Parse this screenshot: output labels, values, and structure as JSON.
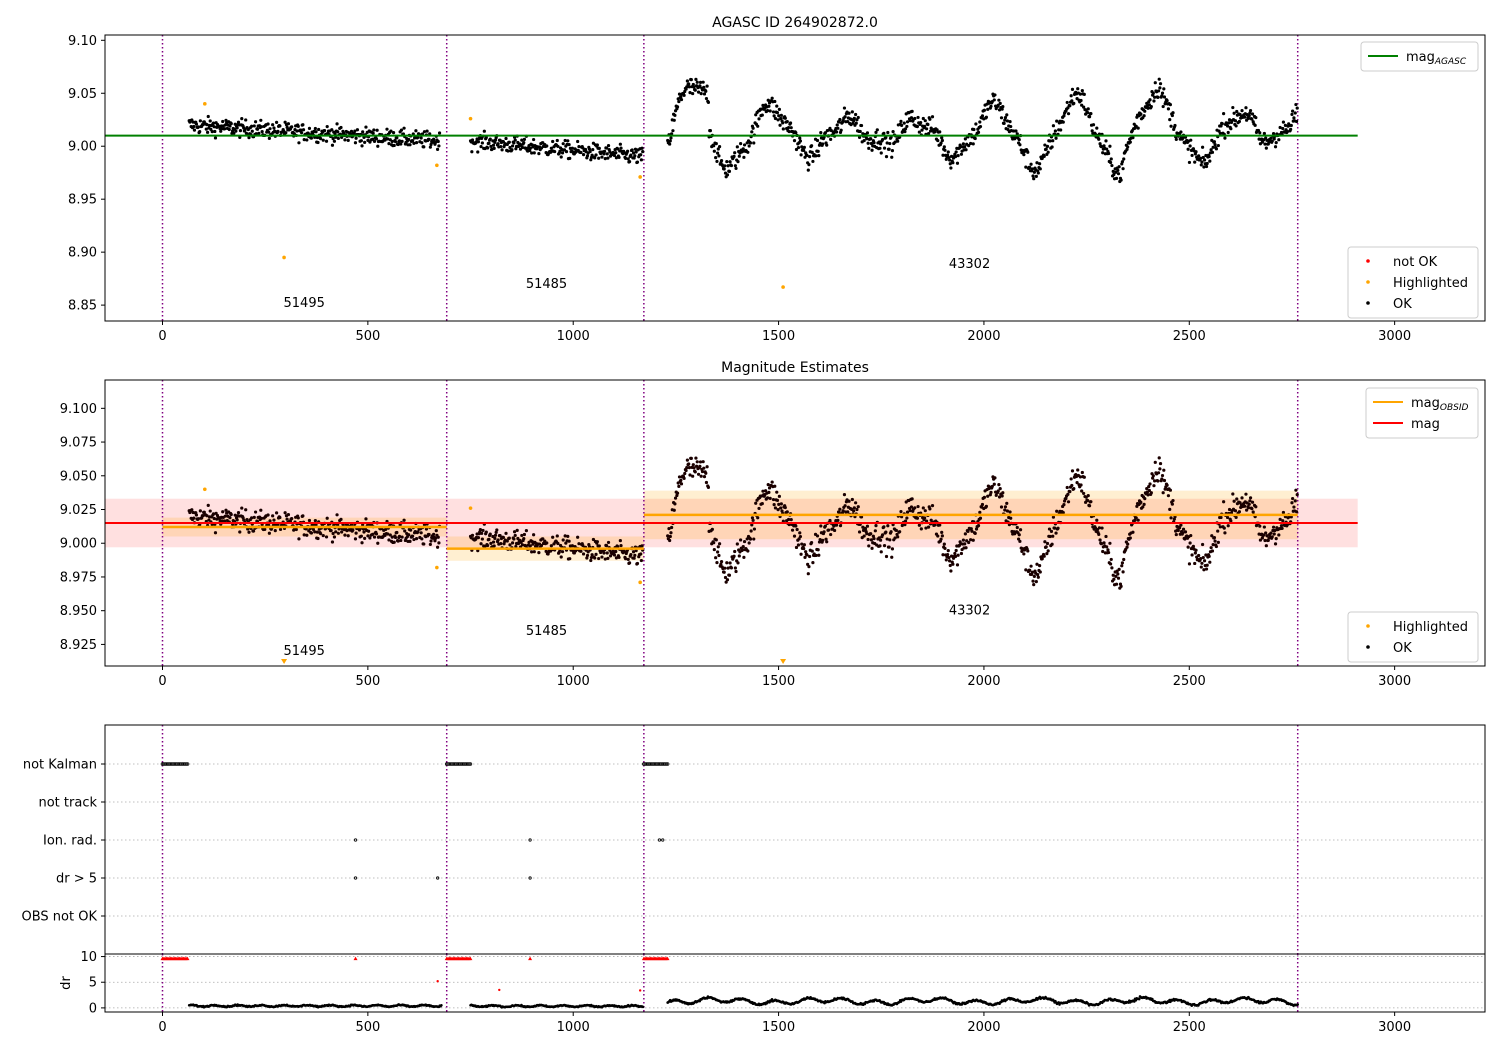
{
  "chart_data": [
    {
      "type": "scatter",
      "title": "AGASC ID 264902872.0",
      "xlabel": "",
      "ylabel": "",
      "xlim": [
        -140,
        3220
      ],
      "ylim": [
        8.835,
        9.105
      ],
      "x_ticks": [
        0,
        500,
        1000,
        1500,
        2000,
        2500,
        3000
      ],
      "y_ticks": [
        8.85,
        8.9,
        8.95,
        9.0,
        9.05,
        9.1
      ],
      "y_tick_labels": [
        "8.85",
        "8.90",
        "8.95",
        "9.00",
        "9.05",
        "9.10"
      ],
      "obs_boundaries": [
        0,
        692,
        1172,
        2764
      ],
      "obsid_labels": [
        {
          "text": "51495",
          "x": 345,
          "y": 8.848
        },
        {
          "text": "51485",
          "x": 935,
          "y": 8.866
        },
        {
          "text": "43302",
          "x": 1965,
          "y": 8.885
        }
      ],
      "mag_agasc": {
        "name": "mag_AGASC",
        "value": 9.01,
        "x_range": [
          -140,
          2910
        ],
        "color": "#008000"
      },
      "segments": [
        {
          "x0": 65,
          "x1": 675,
          "y0": 9.02,
          "y1": 9.005,
          "noise": 0.008
        },
        {
          "x0": 750,
          "x1": 1170,
          "y0": 9.005,
          "y1": 8.99,
          "noise": 0.008
        },
        {
          "x0": 1230,
          "x1": 2764,
          "y0": 9.01,
          "y1": 9.01,
          "noise": 0.01,
          "wave": true
        }
      ],
      "highlighted": [
        {
          "x": 103,
          "y": 9.04
        },
        {
          "x": 296,
          "y": 8.895
        },
        {
          "x": 668,
          "y": 8.982
        },
        {
          "x": 750,
          "y": 9.026
        },
        {
          "x": 1163,
          "y": 8.971
        },
        {
          "x": 1511,
          "y": 8.867
        }
      ],
      "legend_top": [
        {
          "label": "mag",
          "sub": "AGASC",
          "color": "#008000"
        }
      ],
      "legend_bottom": [
        {
          "label": "not OK",
          "color": "#ff0000"
        },
        {
          "label": "Highlighted",
          "color": "#ffa500"
        },
        {
          "label": "OK",
          "color": "#000000"
        }
      ]
    },
    {
      "type": "scatter",
      "title": "Magnitude Estimates",
      "xlim": [
        -140,
        3220
      ],
      "ylim": [
        8.909,
        9.121
      ],
      "x_ticks": [
        0,
        500,
        1000,
        1500,
        2000,
        2500,
        3000
      ],
      "y_ticks": [
        8.925,
        8.95,
        8.975,
        9.0,
        9.025,
        9.05,
        9.075,
        9.1
      ],
      "y_tick_labels": [
        "8.925",
        "8.950",
        "8.975",
        "9.000",
        "9.025",
        "9.050",
        "9.075",
        "9.100"
      ],
      "obs_boundaries": [
        0,
        692,
        1172,
        2764
      ],
      "obsid_labels": [
        {
          "text": "51495",
          "x": 345,
          "y": 8.917
        },
        {
          "text": "51485",
          "x": 935,
          "y": 8.932
        },
        {
          "text": "43302",
          "x": 1965,
          "y": 8.947
        }
      ],
      "mag": {
        "name": "mag",
        "value": 9.015,
        "band": [
          8.997,
          9.033
        ],
        "x_range": [
          -140,
          2910
        ],
        "color": "#ff0000"
      },
      "mag_obsid": [
        {
          "x0": 0,
          "x1": 692,
          "value": 9.012,
          "band": [
            9.005,
            9.019
          ]
        },
        {
          "x0": 692,
          "x1": 1172,
          "value": 8.996,
          "band": [
            8.987,
            9.005
          ]
        },
        {
          "x0": 1172,
          "x1": 2764,
          "value": 9.021,
          "band": [
            9.003,
            9.039
          ]
        }
      ],
      "highlighted": [
        {
          "x": 103,
          "y": 9.04
        },
        {
          "x": 668,
          "y": 8.982
        },
        {
          "x": 750,
          "y": 9.026
        },
        {
          "x": 1163,
          "y": 8.971
        }
      ],
      "highlighted_off_scale": [
        {
          "x": 296
        },
        {
          "x": 1511
        }
      ],
      "legend_top": [
        {
          "label": "mag",
          "sub": "OBSID",
          "color": "#ffa500"
        },
        {
          "label": "mag",
          "sub": "",
          "color": "#ff0000"
        }
      ],
      "legend_bottom": [
        {
          "label": "Highlighted",
          "color": "#ffa500"
        },
        {
          "label": "OK",
          "color": "#000000"
        }
      ]
    },
    {
      "type": "scatter",
      "xlim": [
        -140,
        3220
      ],
      "x_ticks": [
        0,
        500,
        1000,
        1500,
        2000,
        2500,
        3000
      ],
      "obs_boundaries": [
        0,
        692,
        1172,
        2764
      ],
      "flag_rows": [
        "not Kalman",
        "not track",
        "Ion. rad.",
        "dr > 5",
        "OBS not OK"
      ],
      "flags": {
        "not Kalman": [
          [
            0,
            62
          ],
          [
            692,
            750
          ],
          [
            1172,
            1230
          ]
        ],
        "Ion. rad.": [
          470,
          895,
          1210,
          1218
        ],
        "dr > 5": [
          470,
          670,
          895
        ]
      }
    },
    {
      "type": "scatter",
      "ylabel": "dr",
      "xlim": [
        -140,
        3220
      ],
      "ylim": [
        -0.8,
        10.5
      ],
      "x_ticks": [
        0,
        500,
        1000,
        1500,
        2000,
        2500,
        3000
      ],
      "y_ticks": [
        0,
        5,
        10
      ],
      "y_tick_labels": [
        "0",
        "5",
        "10"
      ],
      "obs_boundaries": [
        0,
        692,
        1172,
        2764
      ],
      "clipped_runs": [
        [
          0,
          62
        ],
        [
          692,
          750
        ],
        [
          1172,
          1230
        ]
      ],
      "clipped_singles": [
        470,
        895
      ],
      "outliers": [
        {
          "x": 670,
          "y": 5.2
        },
        {
          "x": 820,
          "y": 3.5
        },
        {
          "x": 1163,
          "y": 3.4
        }
      ],
      "segments": [
        {
          "x0": 65,
          "x1": 680,
          "level": 0.4
        },
        {
          "x0": 750,
          "x1": 1170,
          "level": 0.35
        },
        {
          "x0": 1230,
          "x1": 2764,
          "level": 1.3
        }
      ]
    }
  ]
}
